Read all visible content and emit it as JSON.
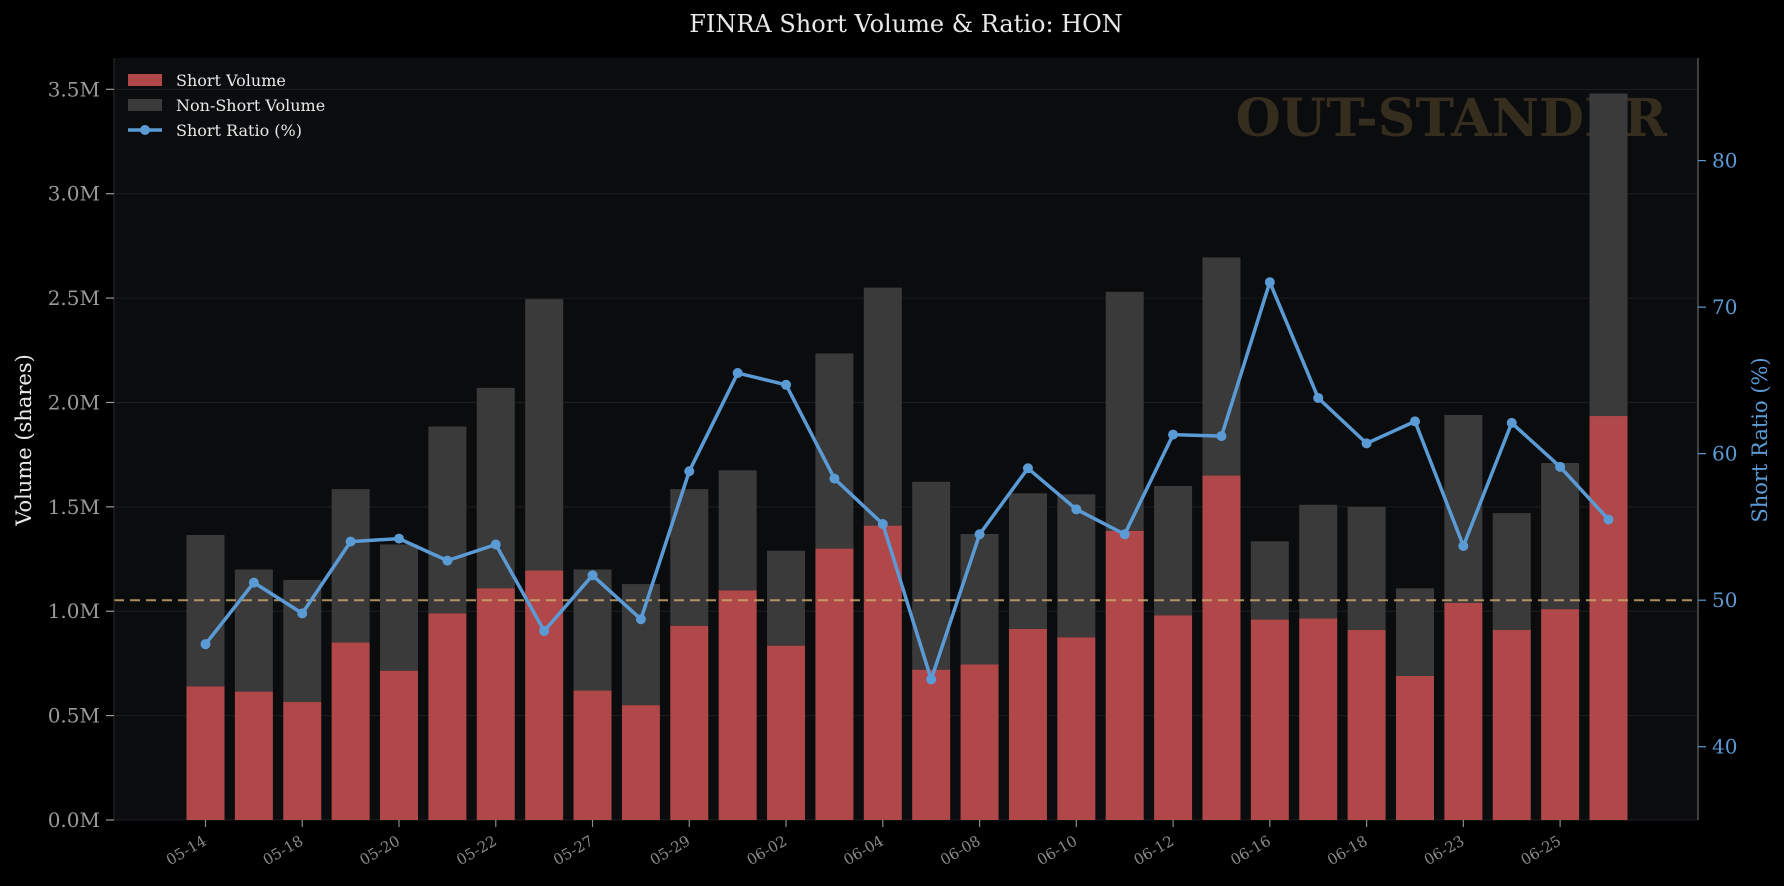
{
  "chart_data": {
    "type": "bar",
    "title": "FINRA Short Volume & Ratio: HON",
    "ylabel_left": "Volume (shares)",
    "ylabel_right": "Short Ratio (%)",
    "watermark": "OUT-STANDER",
    "ylim_left": [
      0,
      3650000
    ],
    "ylim_right": [
      35,
      87
    ],
    "left_ticks": [
      {
        "value": 0,
        "label": "0.0M"
      },
      {
        "value": 500000,
        "label": "0.5M"
      },
      {
        "value": 1000000,
        "label": "1.0M"
      },
      {
        "value": 1500000,
        "label": "1.5M"
      },
      {
        "value": 2000000,
        "label": "2.0M"
      },
      {
        "value": 2500000,
        "label": "2.5M"
      },
      {
        "value": 3000000,
        "label": "3.0M"
      },
      {
        "value": 3500000,
        "label": "3.5M"
      }
    ],
    "right_ticks": [
      {
        "value": 40,
        "label": "40"
      },
      {
        "value": 50,
        "label": "50"
      },
      {
        "value": 60,
        "label": "60"
      },
      {
        "value": 70,
        "label": "70"
      },
      {
        "value": 80,
        "label": "80"
      }
    ],
    "x_tick_labels": [
      {
        "index": 0,
        "label": "05-14"
      },
      {
        "index": 2,
        "label": "05-18"
      },
      {
        "index": 4,
        "label": "05-20"
      },
      {
        "index": 6,
        "label": "05-22"
      },
      {
        "index": 8,
        "label": "05-27"
      },
      {
        "index": 10,
        "label": "05-29"
      },
      {
        "index": 12,
        "label": "06-02"
      },
      {
        "index": 14,
        "label": "06-04"
      },
      {
        "index": 16,
        "label": "06-08"
      },
      {
        "index": 18,
        "label": "06-10"
      },
      {
        "index": 20,
        "label": "06-12"
      },
      {
        "index": 22,
        "label": "06-16"
      },
      {
        "index": 24,
        "label": "06-18"
      },
      {
        "index": 26,
        "label": "06-23"
      },
      {
        "index": 28,
        "label": "06-25"
      }
    ],
    "reference_line": {
      "value": 50,
      "axis": "right",
      "style": "dashed",
      "color": "#c9a56a"
    },
    "legend": {
      "placement": "top-left",
      "items": [
        {
          "label": "Short Volume",
          "kind": "bar",
          "color": "#b0484a"
        },
        {
          "label": "Non-Short Volume",
          "kind": "bar",
          "color": "#3a3a3a"
        },
        {
          "label": "Short Ratio (%)",
          "kind": "line",
          "color": "#5b9bd5"
        }
      ]
    },
    "series": [
      {
        "key": "short_volume",
        "type": "bar",
        "stack": "volume",
        "color": "#b0484a",
        "values": [
          640000,
          615000,
          565000,
          850000,
          715000,
          990000,
          1110000,
          1195000,
          620000,
          550000,
          930000,
          1100000,
          835000,
          1300000,
          1410000,
          720000,
          745000,
          915000,
          875000,
          1385000,
          980000,
          1650000,
          960000,
          965000,
          910000,
          690000,
          1040000,
          910000,
          1010000,
          1935000
        ]
      },
      {
        "key": "total_volume",
        "type": "bar",
        "stack": "volume",
        "color": "#3a3a3a",
        "values": [
          1365000,
          1200000,
          1150000,
          1585000,
          1320000,
          1885000,
          2070000,
          2495000,
          1200000,
          1130000,
          1585000,
          1675000,
          1290000,
          2235000,
          2550000,
          1620000,
          1370000,
          1565000,
          1560000,
          2530000,
          1600000,
          2695000,
          1335000,
          1510000,
          1500000,
          1110000,
          1940000,
          1470000,
          1710000,
          3480000
        ]
      },
      {
        "key": "short_ratio",
        "type": "line",
        "axis": "right",
        "color": "#5b9bd5",
        "values": [
          47.0,
          51.2,
          49.1,
          54.0,
          54.2,
          52.7,
          53.8,
          47.9,
          51.7,
          48.7,
          58.8,
          65.5,
          64.7,
          58.3,
          55.2,
          44.6,
          54.5,
          59.0,
          56.2,
          54.5,
          61.3,
          61.2,
          71.7,
          63.8,
          60.7,
          62.2,
          53.7,
          62.1,
          59.1,
          55.5
        ]
      }
    ]
  }
}
